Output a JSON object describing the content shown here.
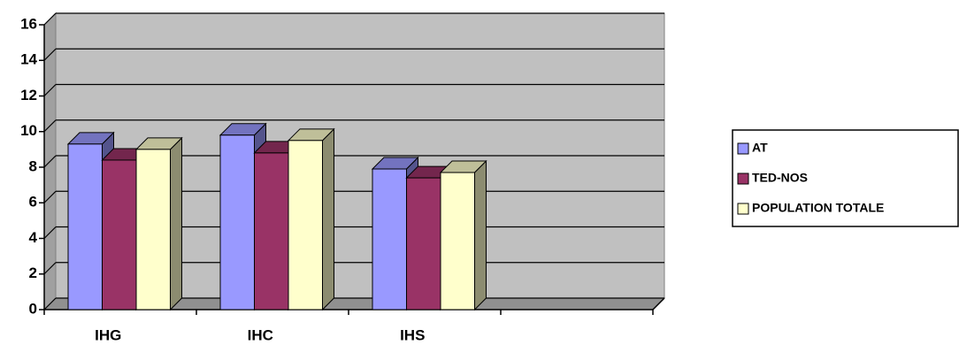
{
  "chart_data": {
    "type": "bar",
    "categories": [
      "IHG",
      "IHC",
      "IHS",
      null
    ],
    "series": [
      {
        "name": "AT",
        "color": "#9999ff",
        "values": [
          9.3,
          9.8,
          7.9,
          null
        ]
      },
      {
        "name": "TED-NOS",
        "color": "#993366",
        "values": [
          8.4,
          8.8,
          7.4,
          null
        ]
      },
      {
        "name": "POPULATION TOTALE",
        "color": "#ffffcc",
        "values": [
          9.0,
          9.5,
          7.7,
          null
        ]
      }
    ],
    "ylim": [
      0,
      16
    ],
    "yticks": [
      0,
      2,
      4,
      6,
      8,
      10,
      12,
      14,
      16
    ],
    "grid": true,
    "legend": "right"
  }
}
